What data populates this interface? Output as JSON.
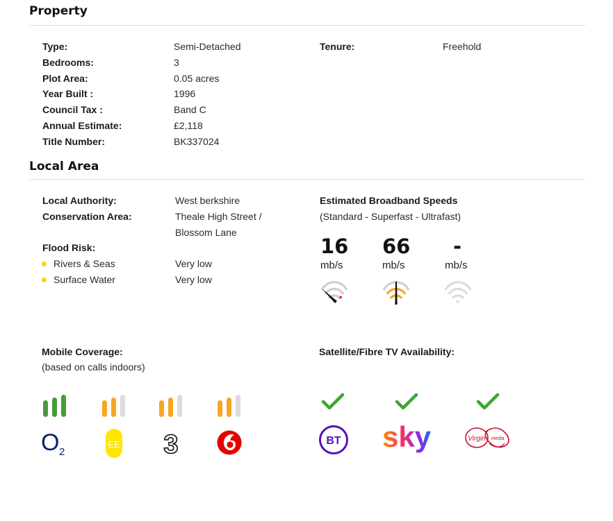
{
  "property": {
    "heading": "Property",
    "rows": [
      {
        "label": "Type:",
        "value": "Semi-Detached"
      },
      {
        "label": "Bedrooms:",
        "value": "3"
      },
      {
        "label": "Plot Area:",
        "value": "0.05 acres"
      },
      {
        "label": "Year Built :",
        "value": "1996"
      },
      {
        "label": "Council Tax :",
        "value": "Band C"
      },
      {
        "label": "Annual Estimate:",
        "value": "£2,118"
      },
      {
        "label": "Title Number:",
        "value": "BK337024"
      }
    ],
    "tenure": {
      "label": "Tenure:",
      "value": "Freehold"
    }
  },
  "local_area": {
    "heading": "Local Area",
    "authority": {
      "label": "Local Authority:",
      "value": "West berkshire"
    },
    "conservation": {
      "label": "Conservation Area:",
      "value_line1": "Theale High Street /",
      "value_line2": "Blossom Lane"
    },
    "flood": {
      "label": "Flood Risk:",
      "items": [
        {
          "label": "Rivers & Seas",
          "value": "Very low"
        },
        {
          "label": "Surface Water",
          "value": "Very low"
        }
      ],
      "bullet_color": "#ffd200"
    }
  },
  "broadband": {
    "title": "Estimated Broadband Speeds",
    "subtitle": "(Standard - Superfast - Ultrafast)",
    "speeds": [
      {
        "value": "16",
        "unit": "mb/s",
        "icon": "speedometer-low-icon"
      },
      {
        "value": "66",
        "unit": "mb/s",
        "icon": "speedometer-mid-icon"
      },
      {
        "value": "-",
        "unit": "mb/s",
        "icon": "speedometer-unavailable-icon"
      }
    ]
  },
  "mobile": {
    "title": "Mobile Coverage:",
    "subtitle": "(based on calls indoors)",
    "providers": [
      {
        "name": "O2",
        "signal_bars": 3,
        "bar_color": "#4a9a3a",
        "logo_text": "O",
        "logo_sub": "2"
      },
      {
        "name": "EE",
        "signal_bars": 2,
        "bar_color": "#f6a623",
        "logo_text": "EE"
      },
      {
        "name": "Three",
        "signal_bars": 2,
        "bar_color": "#f6a623",
        "logo_text": "3"
      },
      {
        "name": "Vodafone",
        "signal_bars": 2,
        "bar_color": "#f6a623"
      }
    ]
  },
  "tv": {
    "title": "Satellite/Fibre TV Availability:",
    "providers": [
      {
        "name": "BT",
        "available": true,
        "logo_text": "BT"
      },
      {
        "name": "Sky",
        "available": true,
        "logo_text": "sky"
      },
      {
        "name": "Virgin Media",
        "available": true,
        "logo_text": "Virgin",
        "logo_sub": "media"
      }
    ],
    "check_color": "#3fa535"
  }
}
